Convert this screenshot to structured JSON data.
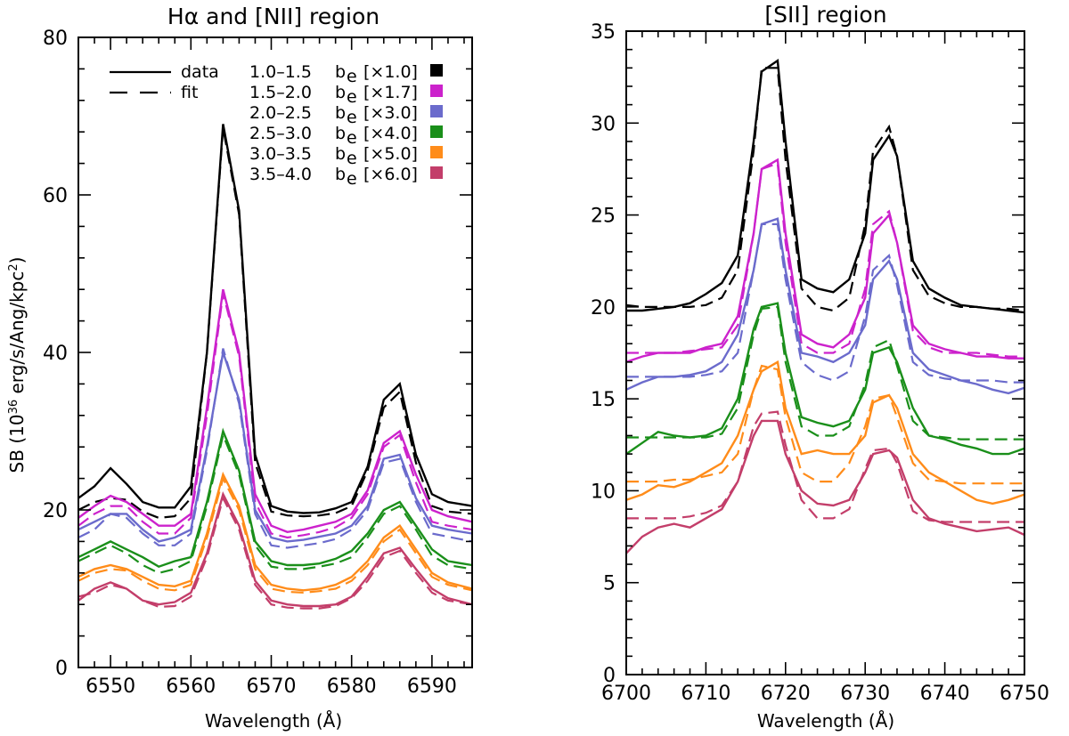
{
  "chart_data": [
    {
      "type": "line",
      "title": "Hα and [NII] region",
      "xlabel": "Wavelength (Å)",
      "ylabel": "SB (10^36 erg/s/Ang/kpc^2)",
      "ylabel_parts": [
        "SB (10",
        "36",
        " erg/s/Ang/kpc",
        "2",
        ")"
      ],
      "xlim": [
        6546,
        6595
      ],
      "ylim": [
        0,
        80
      ],
      "xticks": [
        6550,
        6560,
        6570,
        6580,
        6590
      ],
      "yticks": [
        0,
        20,
        40,
        60,
        80
      ],
      "legend_position": "top-left",
      "legend_styles": [
        {
          "style": "solid",
          "label": "data"
        },
        {
          "style": "dashed",
          "label": "fit"
        }
      ],
      "legend_entries": [
        {
          "range": "1.0–1.5",
          "sub": "e",
          "scale": "[×1.0]",
          "color": "#000000"
        },
        {
          "range": "1.5–2.0",
          "sub": "e",
          "scale": "[×1.7]",
          "color": "#cc22cc"
        },
        {
          "range": "2.0–2.5",
          "sub": "e",
          "scale": "[×3.0]",
          "color": "#6b6bcc"
        },
        {
          "range": "2.5–3.0",
          "sub": "e",
          "scale": "[×4.0]",
          "color": "#1a8f1a"
        },
        {
          "range": "3.0–3.5",
          "sub": "e",
          "scale": "[×5.0]",
          "color": "#ff8c1a"
        },
        {
          "range": "3.5–4.0",
          "sub": "e",
          "scale": "[×6.0]",
          "color": "#c33e6a"
        }
      ],
      "x": [
        6546,
        6548,
        6550,
        6552,
        6554,
        6556,
        6558,
        6560,
        6562,
        6564,
        6566,
        6568,
        6570,
        6572,
        6574,
        6576,
        6578,
        6580,
        6582,
        6584,
        6586,
        6588,
        6590,
        6592,
        6595
      ],
      "series": [
        {
          "color": "#000000",
          "data": [
            21.5,
            23.0,
            25.3,
            23.3,
            21.0,
            20.3,
            20.3,
            23.0,
            40.0,
            69.0,
            58.0,
            27.0,
            20.5,
            19.8,
            19.6,
            19.7,
            20.2,
            21.0,
            25.5,
            34.0,
            36.0,
            27.0,
            22.0,
            21.0,
            20.5
          ],
          "fit": [
            20.0,
            21.0,
            21.5,
            21.3,
            19.8,
            19.0,
            19.2,
            21.5,
            40.0,
            68.5,
            57.5,
            26.0,
            19.8,
            19.3,
            19.2,
            19.3,
            19.6,
            20.5,
            25.0,
            33.0,
            35.0,
            26.0,
            20.5,
            19.8,
            19.5
          ]
        },
        {
          "color": "#cc22cc",
          "data": [
            19.0,
            20.5,
            21.8,
            21.0,
            19.5,
            18.0,
            18.0,
            19.5,
            33.0,
            48.0,
            40.0,
            22.0,
            18.0,
            17.2,
            17.5,
            18.0,
            18.5,
            19.5,
            22.5,
            28.5,
            30.0,
            24.5,
            20.0,
            19.2,
            18.5
          ],
          "fit": [
            18.0,
            19.5,
            20.5,
            20.5,
            18.5,
            17.0,
            17.0,
            19.0,
            32.0,
            47.5,
            39.5,
            21.0,
            17.0,
            16.5,
            16.8,
            17.2,
            17.8,
            19.0,
            22.0,
            28.0,
            29.5,
            23.5,
            18.5,
            18.0,
            17.5
          ]
        },
        {
          "color": "#6b6bcc",
          "data": [
            17.5,
            18.5,
            19.5,
            19.5,
            17.5,
            16.0,
            16.5,
            17.5,
            28.0,
            40.0,
            34.0,
            20.0,
            16.5,
            16.0,
            16.2,
            16.6,
            17.0,
            18.0,
            20.5,
            26.5,
            27.0,
            21.5,
            18.0,
            17.5,
            17.0
          ],
          "fit": [
            16.5,
            17.5,
            19.5,
            19.0,
            17.0,
            15.5,
            15.5,
            17.0,
            27.5,
            40.5,
            33.5,
            19.5,
            15.5,
            15.2,
            15.5,
            15.8,
            16.3,
            17.5,
            20.0,
            26.0,
            26.5,
            21.0,
            17.0,
            16.6,
            16.0
          ]
        },
        {
          "color": "#1a8f1a",
          "data": [
            14.0,
            15.0,
            16.0,
            15.0,
            14.0,
            12.8,
            13.5,
            14.0,
            21.0,
            30.0,
            25.0,
            16.0,
            13.5,
            13.0,
            13.0,
            13.2,
            13.8,
            14.8,
            17.0,
            20.0,
            21.0,
            18.0,
            15.0,
            13.5,
            13.0
          ],
          "fit": [
            13.5,
            14.5,
            15.5,
            14.5,
            13.0,
            12.0,
            12.5,
            13.5,
            20.5,
            29.5,
            24.5,
            15.5,
            12.8,
            12.5,
            12.5,
            12.8,
            13.2,
            14.0,
            16.5,
            19.5,
            20.5,
            17.5,
            14.2,
            13.0,
            12.5
          ]
        },
        {
          "color": "#ff8c1a",
          "data": [
            11.5,
            12.5,
            13.0,
            12.5,
            11.5,
            10.5,
            10.3,
            11.0,
            17.0,
            24.5,
            20.5,
            13.0,
            10.5,
            10.0,
            9.8,
            10.0,
            10.5,
            11.5,
            13.5,
            16.5,
            18.0,
            15.0,
            12.0,
            10.8,
            10.0
          ],
          "fit": [
            11.0,
            12.0,
            12.5,
            12.3,
            11.0,
            10.0,
            9.8,
            10.5,
            16.5,
            24.0,
            20.0,
            12.5,
            10.0,
            9.6,
            9.5,
            9.7,
            10.0,
            11.0,
            13.0,
            16.0,
            17.5,
            14.5,
            11.5,
            10.5,
            9.8
          ]
        },
        {
          "color": "#c33e6a",
          "data": [
            8.5,
            10.0,
            10.8,
            10.0,
            8.5,
            8.0,
            8.3,
            9.5,
            14.5,
            22.0,
            18.0,
            11.0,
            8.5,
            8.0,
            7.8,
            7.8,
            8.0,
            9.0,
            11.5,
            14.5,
            15.2,
            12.5,
            10.0,
            8.8,
            8.0
          ],
          "fit": [
            9.0,
            9.5,
            10.5,
            10.0,
            8.5,
            7.7,
            7.8,
            9.0,
            14.0,
            21.5,
            17.5,
            10.5,
            8.0,
            7.6,
            7.5,
            7.5,
            7.8,
            8.8,
            11.0,
            14.0,
            14.8,
            12.0,
            9.5,
            8.5,
            8.0
          ]
        }
      ]
    },
    {
      "type": "line",
      "title": "[SII] region",
      "xlabel": "Wavelength (Å)",
      "ylabel": "",
      "xlim": [
        6700,
        6750
      ],
      "ylim": [
        0,
        35
      ],
      "xticks": [
        6700,
        6710,
        6720,
        6730,
        6740,
        6750
      ],
      "yticks": [
        0,
        5,
        10,
        15,
        20,
        25,
        30,
        35
      ],
      "x": [
        6700,
        6702,
        6704,
        6706,
        6708,
        6710,
        6712,
        6714,
        6716,
        6717,
        6719,
        6720,
        6722,
        6724,
        6726,
        6728,
        6730,
        6731,
        6733,
        6734,
        6736,
        6738,
        6740,
        6742,
        6744,
        6746,
        6748,
        6750
      ],
      "series": [
        {
          "color": "#000000",
          "data": [
            19.8,
            19.8,
            19.9,
            20.0,
            20.2,
            20.7,
            21.3,
            22.8,
            29.0,
            32.8,
            33.4,
            29.0,
            21.5,
            21.0,
            20.8,
            21.5,
            24.0,
            28.0,
            29.3,
            28.2,
            22.5,
            21.0,
            20.5,
            20.1,
            20.0,
            19.9,
            19.8,
            19.7
          ],
          "fit": [
            20.1,
            20.0,
            20.0,
            20.0,
            20.0,
            20.1,
            20.5,
            22.0,
            28.5,
            33.0,
            33.0,
            28.0,
            21.0,
            20.0,
            19.8,
            20.5,
            24.5,
            28.5,
            29.8,
            28.2,
            22.0,
            20.6,
            20.2,
            20.0,
            20.0,
            19.9,
            19.9,
            19.8
          ]
        },
        {
          "color": "#cc22cc",
          "data": [
            17.0,
            17.3,
            17.5,
            17.5,
            17.5,
            17.8,
            18.0,
            19.5,
            24.0,
            27.5,
            28.0,
            24.0,
            18.5,
            18.0,
            17.8,
            18.5,
            20.5,
            24.0,
            25.0,
            23.5,
            19.0,
            18.0,
            17.7,
            17.5,
            17.3,
            17.3,
            17.2,
            17.2
          ],
          "fit": [
            17.5,
            17.5,
            17.5,
            17.5,
            17.6,
            17.7,
            17.8,
            19.0,
            24.0,
            27.5,
            27.8,
            23.5,
            18.0,
            17.5,
            17.5,
            18.0,
            21.0,
            24.5,
            25.2,
            23.5,
            18.7,
            17.8,
            17.5,
            17.5,
            17.5,
            17.4,
            17.3,
            17.3
          ]
        },
        {
          "color": "#6b6bcc",
          "data": [
            15.5,
            15.9,
            16.2,
            16.2,
            16.3,
            16.5,
            17.0,
            18.5,
            22.0,
            24.5,
            24.8,
            22.0,
            17.5,
            17.3,
            17.0,
            17.5,
            19.0,
            21.5,
            22.5,
            21.5,
            17.5,
            16.6,
            16.3,
            16.0,
            15.8,
            15.5,
            15.3,
            15.6
          ],
          "fit": [
            16.2,
            16.2,
            16.2,
            16.2,
            16.2,
            16.3,
            16.5,
            17.5,
            22.0,
            24.5,
            24.5,
            21.5,
            17.0,
            16.3,
            16.0,
            16.5,
            19.5,
            22.0,
            22.8,
            21.2,
            17.0,
            16.3,
            16.1,
            16.0,
            16.0,
            16.0,
            15.9,
            15.9
          ]
        },
        {
          "color": "#1a8f1a",
          "data": [
            12.0,
            12.6,
            13.2,
            13.0,
            12.9,
            13.0,
            13.4,
            15.0,
            18.8,
            20.0,
            20.2,
            17.5,
            14.0,
            13.7,
            13.5,
            13.8,
            15.5,
            17.5,
            17.8,
            17.0,
            14.5,
            13.0,
            12.8,
            12.5,
            12.3,
            12.0,
            12.0,
            12.3
          ],
          "fit": [
            12.9,
            12.9,
            12.9,
            12.9,
            12.9,
            12.9,
            13.1,
            14.5,
            18.5,
            19.9,
            20.0,
            17.0,
            13.5,
            13.0,
            13.0,
            13.5,
            15.8,
            17.8,
            18.2,
            16.8,
            13.8,
            13.0,
            12.9,
            12.8,
            12.8,
            12.8,
            12.8,
            12.8
          ]
        },
        {
          "color": "#ff8c1a",
          "data": [
            9.5,
            9.8,
            10.3,
            10.2,
            10.5,
            11.0,
            11.5,
            13.0,
            15.5,
            16.5,
            17.0,
            14.5,
            12.0,
            12.2,
            12.0,
            12.0,
            13.0,
            14.8,
            15.2,
            14.5,
            12.0,
            11.0,
            10.5,
            10.0,
            9.5,
            9.3,
            9.5,
            9.8
          ],
          "fit": [
            10.5,
            10.5,
            10.5,
            10.6,
            10.6,
            10.8,
            11.0,
            12.0,
            15.5,
            16.8,
            16.6,
            14.0,
            11.0,
            10.5,
            10.5,
            11.5,
            13.5,
            15.0,
            15.2,
            14.0,
            11.5,
            10.6,
            10.5,
            10.4,
            10.4,
            10.4,
            10.4,
            10.4
          ]
        },
        {
          "color": "#c33e6a",
          "data": [
            6.6,
            7.5,
            8.0,
            8.2,
            8.0,
            8.5,
            9.0,
            10.5,
            13.0,
            13.8,
            13.8,
            12.0,
            10.0,
            9.3,
            9.2,
            9.5,
            11.0,
            12.0,
            12.2,
            11.8,
            9.5,
            8.5,
            8.2,
            8.0,
            7.8,
            7.9,
            8.0,
            7.6
          ],
          "fit": [
            8.5,
            8.5,
            8.5,
            8.5,
            8.6,
            8.8,
            9.2,
            10.5,
            13.5,
            14.2,
            14.3,
            12.5,
            9.5,
            8.5,
            8.5,
            9.0,
            11.2,
            12.2,
            12.3,
            11.5,
            8.9,
            8.4,
            8.3,
            8.3,
            8.3,
            8.3,
            8.3,
            8.3
          ]
        }
      ]
    }
  ]
}
